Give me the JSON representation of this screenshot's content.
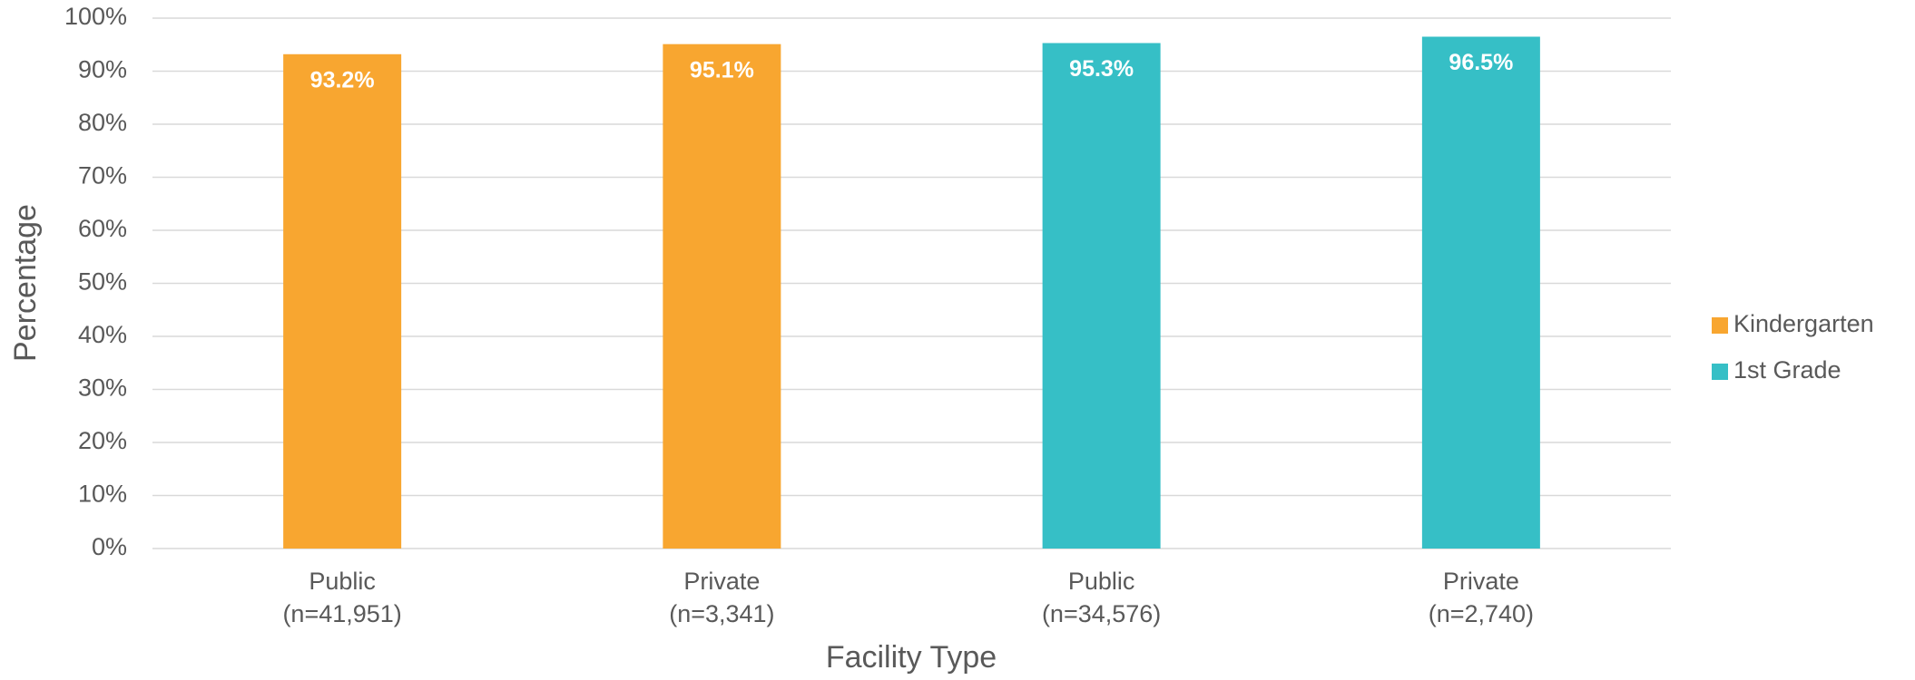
{
  "chart_data": {
    "type": "bar",
    "x_label": "Facility Type",
    "y_label": "Percentage",
    "categories": [
      [
        "Public",
        "(n=41,951)"
      ],
      [
        "Private",
        "(n=3,341)"
      ],
      [
        "Public",
        "(n=34,576)"
      ],
      [
        "Private",
        "(n=2,740)"
      ]
    ],
    "series": [
      {
        "name": "Kindergarten",
        "color": "#f8a630",
        "values": [
          93.2,
          95.1,
          null,
          null
        ],
        "value_labels": [
          "93.2%",
          "95.1%",
          null,
          null
        ]
      },
      {
        "name": "1st Grade",
        "color": "#36bfc6",
        "values": [
          null,
          null,
          95.3,
          96.5
        ],
        "value_labels": [
          null,
          null,
          "95.3%",
          "96.5%"
        ]
      }
    ],
    "ylim": [
      0,
      100
    ],
    "yticks": [
      {
        "value": 0,
        "label": "0%"
      },
      {
        "value": 10,
        "label": "10%"
      },
      {
        "value": 20,
        "label": "20%"
      },
      {
        "value": 30,
        "label": "30%"
      },
      {
        "value": 40,
        "label": "40%"
      },
      {
        "value": 50,
        "label": "50%"
      },
      {
        "value": 60,
        "label": "60%"
      },
      {
        "value": 70,
        "label": "70%"
      },
      {
        "value": 80,
        "label": "80%"
      },
      {
        "value": 90,
        "label": "90%"
      },
      {
        "value": 100,
        "label": "100%"
      }
    ],
    "grid": true,
    "legend": "right"
  }
}
